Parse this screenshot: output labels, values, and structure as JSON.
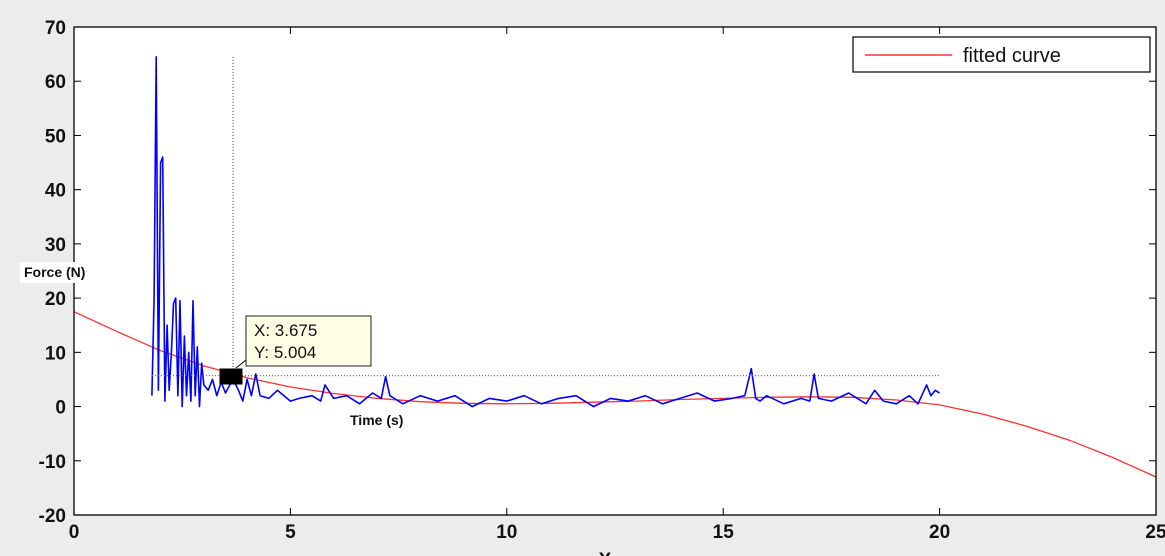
{
  "chart_data": {
    "type": "line",
    "title": "",
    "xlabel": "X",
    "ylabel": "",
    "xlim": [
      0,
      25
    ],
    "ylim": [
      -20,
      70
    ],
    "xticks": [
      0,
      5,
      10,
      15,
      20,
      25
    ],
    "yticks": [
      -20,
      -10,
      0,
      10,
      20,
      30,
      40,
      50,
      60,
      70
    ],
    "grid": false,
    "legend": {
      "placement": "top-right",
      "entries": [
        "fitted curve"
      ]
    },
    "annotations": {
      "force_label": "Force (N)",
      "time_label": "Time (s)"
    },
    "datatip": {
      "x": 3.675,
      "y": 5.004,
      "x_text": "X: 3.675",
      "y_text": "Y: 5.004"
    },
    "series": [
      {
        "name": "fitted curve",
        "color": "#ff3030",
        "x": [
          0,
          1,
          2,
          3,
          4,
          5,
          6,
          7,
          8,
          9,
          10,
          11,
          12,
          13,
          14,
          15,
          16,
          17,
          18,
          19,
          20,
          21,
          22,
          23,
          24,
          25
        ],
        "y": [
          17.5,
          13.8,
          10.3,
          7.5,
          5.3,
          3.6,
          2.4,
          1.5,
          0.9,
          0.6,
          0.5,
          0.6,
          0.8,
          1.0,
          1.3,
          1.5,
          1.7,
          1.8,
          1.7,
          1.2,
          0.3,
          -1.4,
          -3.6,
          -6.2,
          -9.4,
          -13.0
        ]
      },
      {
        "color": "#0000ff",
        "x": [
          1.8,
          1.85,
          1.9,
          1.95,
          2.0,
          2.05,
          2.1,
          2.15,
          2.2,
          2.25,
          2.3,
          2.35,
          2.4,
          2.45,
          2.5,
          2.55,
          2.6,
          2.65,
          2.7,
          2.75,
          2.8,
          2.85,
          2.9,
          2.95,
          3.0,
          3.1,
          3.2,
          3.3,
          3.4,
          3.5,
          3.6,
          3.675,
          3.8,
          3.9,
          4.0,
          4.1,
          4.2,
          4.3,
          4.5,
          4.7,
          5.0,
          5.2,
          5.5,
          5.7,
          5.8,
          6.0,
          6.3,
          6.6,
          6.9,
          7.1,
          7.2,
          7.3,
          7.6,
          8.0,
          8.4,
          8.8,
          9.2,
          9.6,
          10.0,
          10.4,
          10.8,
          11.2,
          11.6,
          12.0,
          12.4,
          12.8,
          13.2,
          13.6,
          14.0,
          14.4,
          14.8,
          15.2,
          15.5,
          15.65,
          15.75,
          15.85,
          16.0,
          16.4,
          16.8,
          17.0,
          17.1,
          17.2,
          17.5,
          17.9,
          18.3,
          18.5,
          18.7,
          19.0,
          19.3,
          19.5,
          19.7,
          19.8,
          19.9,
          20.0
        ],
        "y": [
          2,
          20,
          64.5,
          3,
          45,
          46,
          1,
          15,
          3,
          10,
          19,
          20,
          2,
          19.5,
          0,
          13,
          2,
          10,
          1,
          19.5,
          2,
          11,
          0,
          8,
          4,
          3,
          5,
          2,
          4.5,
          2.5,
          4,
          5.004,
          3,
          1,
          5,
          2,
          6,
          2,
          1.5,
          3,
          1,
          1.5,
          2,
          1,
          4,
          1.5,
          2,
          0.5,
          2.5,
          1.5,
          5.5,
          2,
          0.5,
          2,
          1,
          2,
          0,
          1.5,
          1,
          2,
          0.5,
          1.5,
          2,
          0,
          1.5,
          1,
          2,
          0.5,
          1.5,
          2.5,
          1,
          1.5,
          2,
          7,
          1.5,
          1,
          2,
          0.5,
          1.5,
          1,
          6,
          1.5,
          1,
          2.5,
          0.5,
          3,
          1,
          0.5,
          2,
          0.5,
          4,
          2,
          3,
          2.5
        ]
      }
    ]
  }
}
